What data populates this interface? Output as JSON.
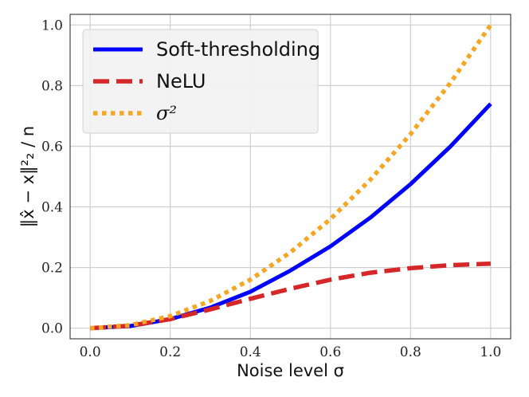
{
  "chart_data": {
    "type": "line",
    "xlabel": "Noise level σ",
    "ylabel": "‖x̂ − x‖²₂ / n",
    "xlim": [
      -0.05,
      1.05
    ],
    "ylim": [
      -0.035,
      1.035
    ],
    "xticks": [
      "0.0",
      "0.2",
      "0.4",
      "0.6",
      "0.8",
      "1.0"
    ],
    "yticks": [
      "0.0",
      "0.2",
      "0.4",
      "0.6",
      "0.8",
      "1.0"
    ],
    "grid": true,
    "legend_position": "top-left",
    "series": [
      {
        "name": "Soft-thresholding",
        "color": "#0000ff",
        "style": "solid",
        "x": [
          0.0,
          0.1,
          0.2,
          0.3,
          0.4,
          0.5,
          0.6,
          0.7,
          0.8,
          0.9,
          1.0
        ],
        "y": [
          0.0,
          0.007,
          0.03,
          0.068,
          0.12,
          0.19,
          0.27,
          0.365,
          0.475,
          0.6,
          0.74
        ]
      },
      {
        "name": "NeLU",
        "color": "#d62728",
        "style": "dashed",
        "x": [
          0.0,
          0.1,
          0.2,
          0.3,
          0.4,
          0.5,
          0.6,
          0.7,
          0.8,
          0.9,
          1.0
        ],
        "y": [
          0.0,
          0.008,
          0.03,
          0.062,
          0.097,
          0.13,
          0.16,
          0.183,
          0.198,
          0.208,
          0.213
        ]
      },
      {
        "name": "σ²",
        "color": "#f5a623",
        "style": "dotted",
        "x": [
          0.0,
          0.1,
          0.2,
          0.3,
          0.4,
          0.5,
          0.6,
          0.7,
          0.8,
          0.9,
          1.0
        ],
        "y": [
          0.0,
          0.01,
          0.04,
          0.09,
          0.16,
          0.25,
          0.36,
          0.49,
          0.64,
          0.81,
          1.0
        ]
      }
    ]
  }
}
